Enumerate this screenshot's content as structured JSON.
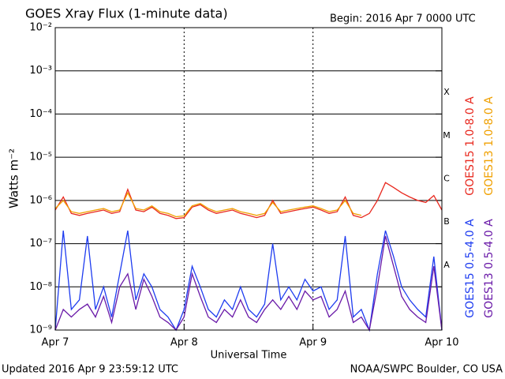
{
  "chart_data": {
    "type": "line",
    "title": "GOES Xray Flux (1-minute data)",
    "subtitle": "Begin:  2016 Apr 7 0000 UTC",
    "x_label": "Universal Time",
    "y_label": "Watts m⁻²",
    "footer_left": "Updated 2016 Apr  9 23:59:12 UTC",
    "footer_right": "NOAA/SWPC Boulder, CO USA",
    "log_scale": true,
    "grid": true,
    "xlim": [
      0,
      72
    ],
    "xticks": [
      {
        "value": 0,
        "label": "Apr 7"
      },
      {
        "value": 24,
        "label": "Apr 8"
      },
      {
        "value": 48,
        "label": "Apr 9"
      },
      {
        "value": 72,
        "label": "Apr 10"
      }
    ],
    "ylim": [
      1e-09,
      0.01
    ],
    "yticks": [
      {
        "value": 1e-09,
        "label": "10⁻⁹"
      },
      {
        "value": 1e-08,
        "label": "10⁻⁸"
      },
      {
        "value": 1e-07,
        "label": "10⁻⁷"
      },
      {
        "value": 1e-06,
        "label": "10⁻⁶"
      },
      {
        "value": 1e-05,
        "label": "10⁻⁵"
      },
      {
        "value": 0.0001,
        "label": "10⁻⁴"
      },
      {
        "value": 0.001,
        "label": "10⁻³"
      },
      {
        "value": 0.01,
        "label": "10⁻²"
      }
    ],
    "class_labels": [
      {
        "value": 1e-08,
        "label": "A"
      },
      {
        "value": 1e-07,
        "label": "B"
      },
      {
        "value": 1e-06,
        "label": "C"
      },
      {
        "value": 1e-05,
        "label": "M"
      },
      {
        "value": 0.0001,
        "label": "X"
      }
    ],
    "x": [
      0,
      1.5,
      3,
      4.5,
      6,
      7.5,
      9,
      10.5,
      12,
      13.5,
      15,
      16.5,
      18,
      19.5,
      21,
      22.5,
      24,
      25.5,
      27,
      28.5,
      30,
      31.5,
      33,
      34.5,
      36,
      37.5,
      39,
      40.5,
      42,
      43.5,
      45,
      46.5,
      48,
      49.5,
      51,
      52.5,
      54,
      55.5,
      57,
      58.5,
      60,
      61.5,
      63,
      64.5,
      66,
      67.5,
      69,
      70.5,
      72
    ],
    "series": [
      {
        "name": "GOES15 1.0-8.0 A",
        "color": "#e8281e",
        "values": [
          6e-07,
          1.2e-06,
          5e-07,
          4.5e-07,
          5e-07,
          5.5e-07,
          6e-07,
          5e-07,
          5.5e-07,
          1.8e-06,
          6e-07,
          5.5e-07,
          7e-07,
          5e-07,
          4.5e-07,
          3.8e-07,
          4e-07,
          7e-07,
          8e-07,
          6e-07,
          5e-07,
          5.5e-07,
          6e-07,
          5e-07,
          4.5e-07,
          4e-07,
          4.5e-07,
          1e-06,
          5e-07,
          5.5e-07,
          6e-07,
          6.5e-07,
          7e-07,
          6e-07,
          5e-07,
          5.5e-07,
          1.2e-06,
          4.5e-07,
          4e-07,
          5e-07,
          1e-06,
          2.6e-06,
          2e-06,
          1.5e-06,
          1.2e-06,
          1e-06,
          9e-07,
          1.3e-06,
          6e-07
        ]
      },
      {
        "name": "GOES13 1.0-8.0 A",
        "color": "#f0a000",
        "values": [
          6.5e-07,
          1e-06,
          5.5e-07,
          5e-07,
          5.5e-07,
          6e-07,
          6.5e-07,
          5.5e-07,
          6e-07,
          1.5e-06,
          6.5e-07,
          6e-07,
          7.5e-07,
          5.5e-07,
          5e-07,
          4.2e-07,
          4.4e-07,
          7.5e-07,
          8.5e-07,
          6.5e-07,
          5.5e-07,
          6e-07,
          6.5e-07,
          5.5e-07,
          5e-07,
          4.5e-07,
          5e-07,
          9e-07,
          5.5e-07,
          6e-07,
          6.5e-07,
          7e-07,
          7.5e-07,
          6.5e-07,
          5.5e-07,
          6e-07,
          1e-06,
          5e-07,
          4.5e-07,
          null,
          null,
          null,
          null,
          null,
          null,
          null,
          null,
          null,
          null
        ]
      },
      {
        "name": "GOES15 0.5-4.0 A",
        "color": "#1e3cf0",
        "values": [
          1e-09,
          2e-07,
          3e-09,
          5e-09,
          1.5e-07,
          3e-09,
          1e-08,
          2e-09,
          2e-08,
          2e-07,
          5e-09,
          2e-08,
          1e-08,
          3e-09,
          2e-09,
          1e-09,
          3e-09,
          3e-08,
          1e-08,
          3e-09,
          2e-09,
          5e-09,
          3e-09,
          1e-08,
          3e-09,
          2e-09,
          4e-09,
          1e-07,
          5e-09,
          1e-08,
          5e-09,
          1.5e-08,
          8e-09,
          1e-08,
          3e-09,
          5e-09,
          1.5e-07,
          2e-09,
          3e-09,
          1e-09,
          2e-08,
          2e-07,
          5e-08,
          1e-08,
          5e-09,
          3e-09,
          2e-09,
          5e-08,
          1e-09
        ]
      },
      {
        "name": "GOES13 0.5-4.0 A",
        "color": "#6a1aa8",
        "values": [
          1e-09,
          3e-09,
          2e-09,
          3e-09,
          4e-09,
          2e-09,
          6e-09,
          1.5e-09,
          1e-08,
          2e-08,
          3e-09,
          1.5e-08,
          6e-09,
          2e-09,
          1.5e-09,
          1e-09,
          2e-09,
          2e-08,
          6e-09,
          2e-09,
          1.5e-09,
          3e-09,
          2e-09,
          5e-09,
          2e-09,
          1.5e-09,
          3e-09,
          5e-09,
          3e-09,
          6e-09,
          3e-09,
          8e-09,
          5e-09,
          6e-09,
          2e-09,
          3e-09,
          8e-09,
          1.5e-09,
          2e-09,
          1e-09,
          1e-08,
          1.5e-07,
          3e-08,
          6e-09,
          3e-09,
          2e-09,
          1.5e-09,
          3e-08,
          1e-09
        ]
      }
    ]
  }
}
